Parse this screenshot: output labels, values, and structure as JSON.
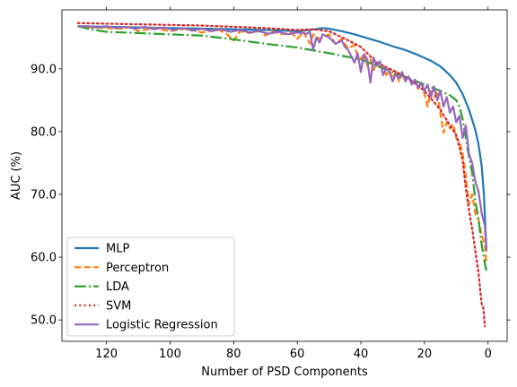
{
  "chart_data": {
    "type": "line",
    "title": "",
    "xlabel": "Number of PSD Components",
    "ylabel": "AUC (%)",
    "xlim": [
      134,
      -6
    ],
    "ylim": [
      46.6,
      99.4
    ],
    "x_inverted": true,
    "xticks": [
      120,
      100,
      80,
      60,
      40,
      20,
      0
    ],
    "xtick_labels": [
      "120",
      "100",
      "80",
      "60",
      "40",
      "20",
      "0"
    ],
    "yticks": [
      50,
      60,
      70,
      80,
      90
    ],
    "ytick_labels": [
      "50.0",
      "60.0",
      "70.0",
      "80.0",
      "90.0"
    ],
    "grid": false,
    "legend_position": "lower-left",
    "series": [
      {
        "name": "MLP",
        "color": "#1f77b4",
        "style": "solid",
        "points": [
          [
            129,
            96.8
          ],
          [
            120,
            96.7
          ],
          [
            110,
            96.6
          ],
          [
            100,
            96.5
          ],
          [
            90,
            96.4
          ],
          [
            80,
            96.3
          ],
          [
            70,
            96.2
          ],
          [
            60,
            96.0
          ],
          [
            56,
            96.2
          ],
          [
            52,
            96.5
          ],
          [
            50,
            96.4
          ],
          [
            46,
            96.0
          ],
          [
            42,
            95.5
          ],
          [
            38,
            94.9
          ],
          [
            34,
            94.3
          ],
          [
            30,
            93.6
          ],
          [
            26,
            93.0
          ],
          [
            22,
            92.2
          ],
          [
            18,
            91.3
          ],
          [
            15,
            90.4
          ],
          [
            12,
            89.0
          ],
          [
            10,
            87.8
          ],
          [
            8,
            86.0
          ],
          [
            6,
            83.5
          ],
          [
            4,
            80.3
          ],
          [
            3,
            78.0
          ],
          [
            2,
            74.5
          ],
          [
            1.3,
            70.0
          ],
          [
            0.5,
            61.0
          ]
        ]
      },
      {
        "name": "Perceptron",
        "color": "#ff7f0e",
        "style": "dashed",
        "points": [
          [
            129,
            96.8
          ],
          [
            125,
            96.6
          ],
          [
            120,
            96.5
          ],
          [
            115,
            96.4
          ],
          [
            112,
            96.7
          ],
          [
            110,
            96.0
          ],
          [
            105,
            96.5
          ],
          [
            100,
            96.0
          ],
          [
            95,
            96.4
          ],
          [
            90,
            95.8
          ],
          [
            85,
            96.3
          ],
          [
            82,
            95.5
          ],
          [
            80,
            94.5
          ],
          [
            78,
            96.0
          ],
          [
            75,
            95.7
          ],
          [
            72,
            96.1
          ],
          [
            70,
            95.3
          ],
          [
            68,
            96.0
          ],
          [
            65,
            95.5
          ],
          [
            62,
            95.8
          ],
          [
            60,
            94.8
          ],
          [
            58,
            95.9
          ],
          [
            56,
            94.0
          ],
          [
            55,
            95.5
          ],
          [
            53,
            94.8
          ],
          [
            50,
            95.5
          ],
          [
            48,
            94.0
          ],
          [
            46,
            94.8
          ],
          [
            44,
            93.2
          ],
          [
            42,
            93.8
          ],
          [
            41,
            92.0
          ],
          [
            40,
            91.5
          ],
          [
            39,
            92.5
          ],
          [
            38,
            90.5
          ],
          [
            37,
            91.5
          ],
          [
            36,
            89.8
          ],
          [
            35,
            91.0
          ],
          [
            34,
            90.0
          ],
          [
            33,
            90.5
          ],
          [
            32,
            89.0
          ],
          [
            31,
            89.8
          ],
          [
            30,
            88.5
          ],
          [
            29,
            89.5
          ],
          [
            28,
            88.0
          ],
          [
            27,
            89.2
          ],
          [
            26,
            88.2
          ],
          [
            25,
            88.8
          ],
          [
            24,
            87.5
          ],
          [
            23,
            88.2
          ],
          [
            22,
            86.8
          ],
          [
            21,
            87.8
          ],
          [
            20,
            86.0
          ],
          [
            19,
            84.0
          ],
          [
            18,
            86.5
          ],
          [
            17,
            85.5
          ],
          [
            16,
            86.5
          ],
          [
            15,
            83.0
          ],
          [
            14,
            79.8
          ],
          [
            13,
            81.5
          ],
          [
            12,
            80.5
          ],
          [
            11,
            81.2
          ],
          [
            10,
            79.0
          ],
          [
            9,
            78.5
          ],
          [
            8,
            76.5
          ],
          [
            7,
            73.0
          ],
          [
            6,
            68.5
          ],
          [
            5,
            70.0
          ],
          [
            4,
            67.0
          ],
          [
            3,
            66.0
          ],
          [
            2,
            63.5
          ],
          [
            1,
            62.0
          ],
          [
            0.5,
            59.0
          ]
        ]
      },
      {
        "name": "LDA",
        "color": "#2ca02c",
        "style": "dashdot",
        "points": [
          [
            129,
            96.8
          ],
          [
            125,
            96.3
          ],
          [
            120,
            95.9
          ],
          [
            110,
            95.7
          ],
          [
            100,
            95.5
          ],
          [
            90,
            95.3
          ],
          [
            80,
            94.7
          ],
          [
            70,
            94.0
          ],
          [
            60,
            93.4
          ],
          [
            50,
            92.5
          ],
          [
            45,
            92.0
          ],
          [
            40,
            91.5
          ],
          [
            35,
            90.5
          ],
          [
            30,
            89.5
          ],
          [
            25,
            88.5
          ],
          [
            20,
            87.5
          ],
          [
            15,
            86.5
          ],
          [
            12,
            85.8
          ],
          [
            10,
            85.0
          ],
          [
            9,
            84.0
          ],
          [
            8,
            82.0
          ],
          [
            7,
            79.0
          ],
          [
            6,
            76.0
          ],
          [
            5,
            73.5
          ],
          [
            4,
            69.0
          ],
          [
            3,
            66.0
          ],
          [
            2,
            62.0
          ],
          [
            1,
            59.0
          ],
          [
            0.5,
            57.8
          ]
        ]
      },
      {
        "name": "SVM",
        "color": "#d62728",
        "style": "dotted",
        "points": [
          [
            129,
            97.3
          ],
          [
            120,
            97.2
          ],
          [
            110,
            97.1
          ],
          [
            100,
            97.0
          ],
          [
            90,
            96.9
          ],
          [
            80,
            96.7
          ],
          [
            70,
            96.5
          ],
          [
            60,
            96.2
          ],
          [
            55,
            96.3
          ],
          [
            50,
            96.0
          ],
          [
            45,
            94.8
          ],
          [
            40,
            93.5
          ],
          [
            35,
            91.0
          ],
          [
            30,
            89.8
          ],
          [
            25,
            88.5
          ],
          [
            20,
            86.5
          ],
          [
            15,
            83.5
          ],
          [
            12,
            81.0
          ],
          [
            10,
            79.5
          ],
          [
            8,
            75.5
          ],
          [
            7,
            71.0
          ],
          [
            6,
            67.5
          ],
          [
            5,
            64.5
          ],
          [
            4,
            61.0
          ],
          [
            3,
            57.5
          ],
          [
            2,
            52.5
          ],
          [
            1.5,
            52.0
          ],
          [
            1,
            49.0
          ]
        ]
      },
      {
        "name": "Logistic Regression",
        "color": "#9467bd",
        "style": "solid",
        "points": [
          [
            129,
            96.7
          ],
          [
            126,
            96.8
          ],
          [
            123,
            96.6
          ],
          [
            120,
            96.8
          ],
          [
            117,
            96.5
          ],
          [
            114,
            96.7
          ],
          [
            111,
            96.4
          ],
          [
            108,
            96.7
          ],
          [
            105,
            96.3
          ],
          [
            102,
            96.6
          ],
          [
            99,
            96.2
          ],
          [
            96,
            96.5
          ],
          [
            93,
            96.1
          ],
          [
            90,
            96.4
          ],
          [
            87,
            96.0
          ],
          [
            84,
            96.3
          ],
          [
            81,
            95.9
          ],
          [
            78,
            96.2
          ],
          [
            75,
            95.8
          ],
          [
            72,
            96.0
          ],
          [
            69,
            95.6
          ],
          [
            66,
            95.9
          ],
          [
            63,
            95.5
          ],
          [
            60,
            95.8
          ],
          [
            57,
            95.6
          ],
          [
            56,
            95.9
          ],
          [
            55,
            93.0
          ],
          [
            54,
            95.0
          ],
          [
            53,
            94.2
          ],
          [
            52,
            95.5
          ],
          [
            50,
            95.0
          ],
          [
            48,
            94.0
          ],
          [
            46,
            94.5
          ],
          [
            45,
            93.5
          ],
          [
            44,
            93.0
          ],
          [
            43,
            92.0
          ],
          [
            42,
            91.0
          ],
          [
            41,
            92.5
          ],
          [
            40,
            89.5
          ],
          [
            39,
            92.3
          ],
          [
            38,
            91.5
          ],
          [
            37,
            87.8
          ],
          [
            36,
            91.8
          ],
          [
            35,
            90.5
          ],
          [
            34,
            91.2
          ],
          [
            33,
            89.0
          ],
          [
            32,
            90.2
          ],
          [
            31,
            89.5
          ],
          [
            30,
            88.0
          ],
          [
            29,
            89.2
          ],
          [
            28,
            88.5
          ],
          [
            27,
            89.5
          ],
          [
            26,
            88.0
          ],
          [
            25,
            88.8
          ],
          [
            24,
            87.5
          ],
          [
            23,
            88.3
          ],
          [
            22,
            87.0
          ],
          [
            21,
            87.8
          ],
          [
            20,
            86.5
          ],
          [
            19,
            87.5
          ],
          [
            18,
            85.5
          ],
          [
            17,
            87.2
          ],
          [
            16,
            85.0
          ],
          [
            15,
            86.5
          ],
          [
            14,
            84.0
          ],
          [
            13,
            85.5
          ],
          [
            12,
            83.0
          ],
          [
            11,
            84.0
          ],
          [
            10,
            81.5
          ],
          [
            9,
            82.5
          ],
          [
            8,
            79.0
          ],
          [
            7,
            81.0
          ],
          [
            6,
            76.5
          ],
          [
            5,
            75.0
          ],
          [
            4,
            72.0
          ],
          [
            3,
            70.5
          ],
          [
            2,
            67.0
          ],
          [
            1,
            65.0
          ],
          [
            0.5,
            61.0
          ]
        ]
      }
    ]
  }
}
